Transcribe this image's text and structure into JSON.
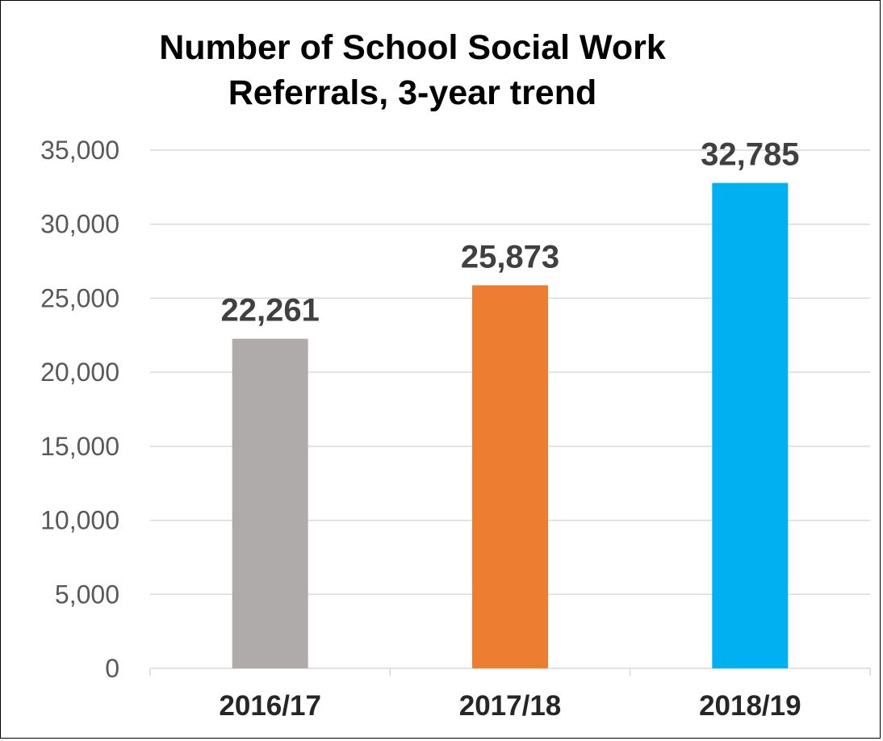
{
  "chart_data": {
    "type": "bar",
    "title": "Number of School Social Work Referrals, 3-year trend",
    "title_lines": [
      "Number of School Social Work",
      "Referrals, 3-year trend"
    ],
    "categories": [
      "2016/17",
      "2017/18",
      "2018/19"
    ],
    "values": [
      22261,
      25873,
      32785
    ],
    "value_labels": [
      "22,261",
      "25,873",
      "32,785"
    ],
    "bar_colors": [
      "#afabaa",
      "#ed7d31",
      "#00b0f0"
    ],
    "xlabel": "",
    "ylabel": "",
    "ylim": [
      0,
      35000
    ],
    "yticks": [
      0,
      5000,
      10000,
      15000,
      20000,
      25000,
      30000,
      35000
    ],
    "ytick_labels": [
      "0",
      "5,000",
      "10,000",
      "15,000",
      "20,000",
      "25,000",
      "30,000",
      "35,000"
    ],
    "grid": true,
    "legend": "none"
  }
}
